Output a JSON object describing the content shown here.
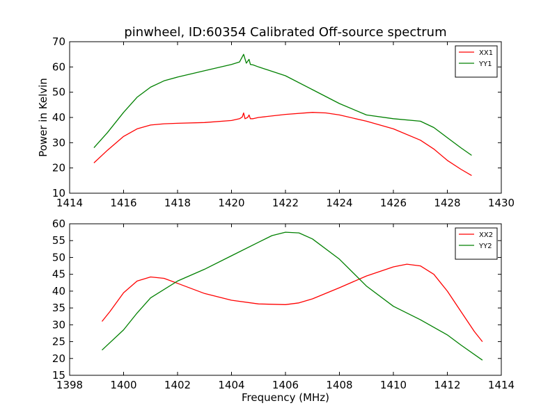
{
  "chart_data": [
    {
      "type": "line",
      "title": "pinwheel, ID:60354 Calibrated Off-source spectrum",
      "xlabel": "",
      "ylabel": "Power in Kelvin",
      "xlim": [
        1414,
        1430
      ],
      "ylim": [
        10,
        70
      ],
      "xticks": [
        "1414",
        "1416",
        "1418",
        "1420",
        "1422",
        "1424",
        "1426",
        "1428",
        "1430"
      ],
      "yticks": [
        "10",
        "20",
        "30",
        "40",
        "50",
        "60",
        "70"
      ],
      "legend_position": "top-right",
      "series": [
        {
          "name": "XX1",
          "color": "#ff0000",
          "x": [
            1414.9,
            1415.4,
            1416.0,
            1416.5,
            1417.0,
            1417.5,
            1418.0,
            1419.0,
            1420.0,
            1420.3,
            1420.4,
            1420.45,
            1420.5,
            1420.6,
            1420.65,
            1420.7,
            1420.8,
            1421.0,
            1422.0,
            1423.0,
            1423.5,
            1424.0,
            1425.0,
            1426.0,
            1427.0,
            1427.5,
            1428.0,
            1428.5,
            1428.9
          ],
          "values": [
            22,
            27,
            32.5,
            35.5,
            37,
            37.5,
            37.7,
            38,
            38.8,
            39.5,
            40.2,
            41.8,
            39.5,
            40,
            41,
            39.5,
            39.5,
            40,
            41.2,
            42,
            41.8,
            41,
            38.5,
            35.5,
            31,
            27.5,
            23,
            19.5,
            17
          ]
        },
        {
          "name": "YY1",
          "color": "#008000",
          "x": [
            1414.9,
            1415.4,
            1416.0,
            1416.5,
            1417.0,
            1417.5,
            1418.0,
            1419.0,
            1420.0,
            1420.3,
            1420.45,
            1420.55,
            1420.65,
            1420.7,
            1420.8,
            1421.0,
            1422.0,
            1423.0,
            1424.0,
            1425.0,
            1426.0,
            1427.0,
            1427.5,
            1428.0,
            1428.5,
            1428.9
          ],
          "values": [
            28,
            34,
            42,
            48,
            52,
            54.5,
            56,
            58.5,
            61,
            62,
            65,
            61.5,
            63,
            61,
            60.8,
            60,
            56.5,
            51,
            45.5,
            41,
            39.5,
            38.5,
            36,
            32,
            28,
            25
          ]
        }
      ]
    },
    {
      "type": "line",
      "title": "",
      "xlabel": "Frequency (MHz)",
      "ylabel": "",
      "xlim": [
        1398,
        1414
      ],
      "ylim": [
        15,
        60
      ],
      "xticks": [
        "1398",
        "1400",
        "1402",
        "1404",
        "1406",
        "1408",
        "1410",
        "1412",
        "1414"
      ],
      "yticks": [
        "15",
        "20",
        "25",
        "30",
        "35",
        "40",
        "45",
        "50",
        "55",
        "60"
      ],
      "legend_position": "top-right",
      "series": [
        {
          "name": "XX2",
          "color": "#ff0000",
          "x": [
            1399.2,
            1399.5,
            1400.0,
            1400.5,
            1401.0,
            1401.5,
            1402.0,
            1403.0,
            1404.0,
            1405.0,
            1406.0,
            1406.5,
            1407.0,
            1408.0,
            1409.0,
            1410.0,
            1410.5,
            1411.0,
            1411.5,
            1412.0,
            1412.5,
            1413.0,
            1413.3
          ],
          "values": [
            31,
            34,
            39.5,
            43,
            44.2,
            43.8,
            42.3,
            39.3,
            37.3,
            36.2,
            36,
            36.5,
            37.7,
            41,
            44.5,
            47.2,
            48,
            47.5,
            45,
            40,
            34,
            28,
            25
          ]
        },
        {
          "name": "YY2",
          "color": "#008000",
          "x": [
            1399.2,
            1400.0,
            1400.5,
            1401.0,
            1402.0,
            1403.0,
            1404.0,
            1405.0,
            1405.5,
            1406.0,
            1406.5,
            1407.0,
            1408.0,
            1409.0,
            1410.0,
            1411.0,
            1412.0,
            1412.5,
            1413.3
          ],
          "values": [
            22.5,
            28.5,
            33.5,
            38,
            43,
            46.5,
            50.5,
            54.5,
            56.5,
            57.5,
            57.3,
            55.5,
            49.5,
            41.5,
            35.5,
            31.5,
            27,
            24,
            19.5
          ]
        }
      ]
    }
  ]
}
